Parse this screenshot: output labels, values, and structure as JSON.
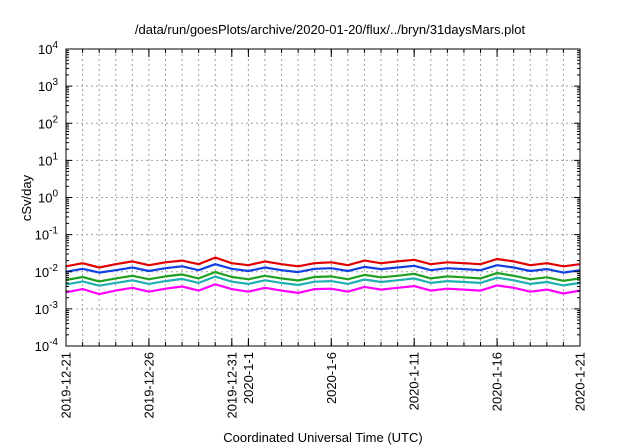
{
  "chart_data": {
    "type": "line",
    "title": "/data/run/goesPlots/archive/2020-01-20/flux/../bryn/31daysMars.plot",
    "xlabel": "Coordinated Universal Time (UTC)",
    "ylabel": "cSv/day",
    "yscale": "log",
    "ylim": [
      0.0001,
      10000
    ],
    "xlim": [
      "2019-12-21",
      "2020-01-21"
    ],
    "grid": true,
    "y_ticks": [
      {
        "value": 0.0001,
        "base": "10",
        "exp": "-4"
      },
      {
        "value": 0.001,
        "base": "10",
        "exp": "-3"
      },
      {
        "value": 0.01,
        "base": "10",
        "exp": "-2"
      },
      {
        "value": 0.1,
        "base": "10",
        "exp": "-1"
      },
      {
        "value": 1,
        "base": "10",
        "exp": "0"
      },
      {
        "value": 10,
        "base": "10",
        "exp": "1"
      },
      {
        "value": 100,
        "base": "10",
        "exp": "2"
      },
      {
        "value": 1000,
        "base": "10",
        "exp": "3"
      },
      {
        "value": 10000,
        "base": "10",
        "exp": "4"
      }
    ],
    "x_ticks": [
      {
        "date": "2019-12-21",
        "label": "2019-12-21"
      },
      {
        "date": "2019-12-26",
        "label": "2019-12-26"
      },
      {
        "date": "2019-12-31",
        "label": "2019-12-31"
      },
      {
        "date": "2020-01-01",
        "label": "2020-1-1"
      },
      {
        "date": "2020-01-06",
        "label": "2020-1-6"
      },
      {
        "date": "2020-01-11",
        "label": "2020-1-11"
      },
      {
        "date": "2020-01-16",
        "label": "2020-1-16"
      },
      {
        "date": "2020-01-21",
        "label": "2020-1-21"
      }
    ],
    "x": [
      "2019-12-21",
      "2019-12-22",
      "2019-12-23",
      "2019-12-24",
      "2019-12-25",
      "2019-12-26",
      "2019-12-27",
      "2019-12-28",
      "2019-12-29",
      "2019-12-30",
      "2019-12-31",
      "2020-01-01",
      "2020-01-02",
      "2020-01-03",
      "2020-01-04",
      "2020-01-05",
      "2020-01-06",
      "2020-01-07",
      "2020-01-08",
      "2020-01-09",
      "2020-01-10",
      "2020-01-11",
      "2020-01-12",
      "2020-01-13",
      "2020-01-14",
      "2020-01-15",
      "2020-01-16",
      "2020-01-17",
      "2020-01-18",
      "2020-01-19",
      "2020-01-20",
      "2020-01-21"
    ],
    "series": [
      {
        "color": "#e00000",
        "values": [
          0.014,
          0.017,
          0.013,
          0.016,
          0.019,
          0.015,
          0.018,
          0.02,
          0.016,
          0.024,
          0.017,
          0.015,
          0.019,
          0.016,
          0.014,
          0.017,
          0.018,
          0.015,
          0.02,
          0.017,
          0.019,
          0.021,
          0.016,
          0.018,
          0.017,
          0.016,
          0.022,
          0.019,
          0.015,
          0.017,
          0.014,
          0.016
        ]
      },
      {
        "color": "#1040e0",
        "values": [
          0.01,
          0.012,
          0.0095,
          0.011,
          0.013,
          0.0105,
          0.0125,
          0.014,
          0.011,
          0.016,
          0.012,
          0.0105,
          0.013,
          0.011,
          0.0098,
          0.012,
          0.0125,
          0.0105,
          0.0135,
          0.0118,
          0.013,
          0.0145,
          0.011,
          0.0125,
          0.0118,
          0.011,
          0.015,
          0.013,
          0.0105,
          0.0118,
          0.0095,
          0.011
        ]
      },
      {
        "color": "#20a020",
        "values": [
          0.006,
          0.0072,
          0.0055,
          0.0066,
          0.0078,
          0.0063,
          0.0075,
          0.0085,
          0.0066,
          0.0098,
          0.0072,
          0.0063,
          0.0078,
          0.0066,
          0.0058,
          0.0072,
          0.0075,
          0.0063,
          0.0082,
          0.0071,
          0.0078,
          0.0088,
          0.0066,
          0.0075,
          0.0071,
          0.0066,
          0.0092,
          0.0078,
          0.0063,
          0.0071,
          0.0057,
          0.0066
        ]
      },
      {
        "color": "#20b0b0",
        "values": [
          0.0045,
          0.0055,
          0.0042,
          0.005,
          0.0059,
          0.0047,
          0.0056,
          0.0064,
          0.005,
          0.0074,
          0.0054,
          0.0047,
          0.0059,
          0.005,
          0.0044,
          0.0054,
          0.0056,
          0.0047,
          0.0062,
          0.0053,
          0.0059,
          0.0066,
          0.005,
          0.0056,
          0.0053,
          0.005,
          0.0069,
          0.0059,
          0.0047,
          0.0053,
          0.0043,
          0.005
        ]
      },
      {
        "color": "#ff00ff",
        "values": [
          0.0028,
          0.0034,
          0.0025,
          0.0031,
          0.0037,
          0.0029,
          0.0035,
          0.004,
          0.0031,
          0.0046,
          0.0034,
          0.0029,
          0.0037,
          0.0031,
          0.0027,
          0.0034,
          0.0035,
          0.0029,
          0.0039,
          0.0033,
          0.0037,
          0.0041,
          0.0031,
          0.0035,
          0.0033,
          0.0031,
          0.0043,
          0.0037,
          0.0029,
          0.0033,
          0.0026,
          0.0031
        ]
      }
    ]
  }
}
